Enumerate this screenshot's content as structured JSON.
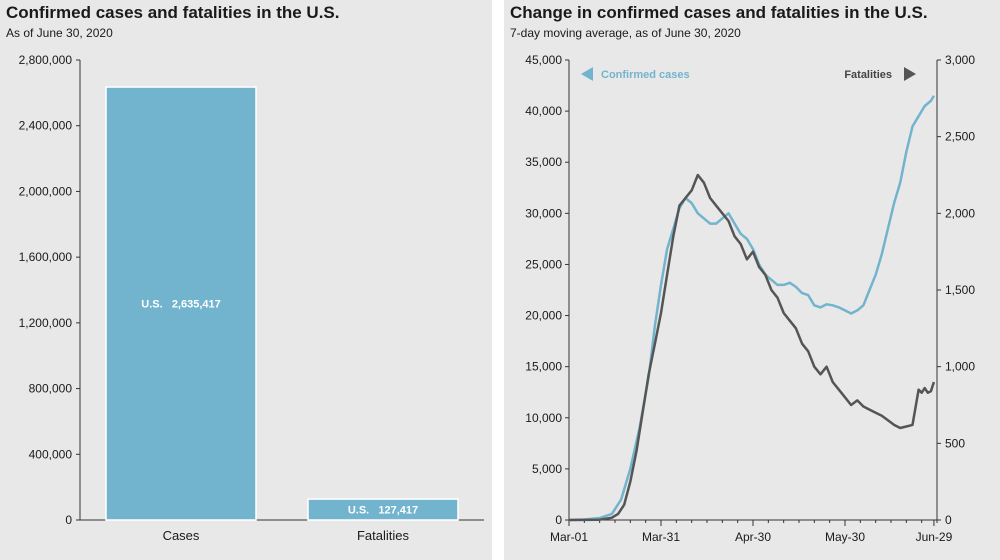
{
  "colors": {
    "bar": "#72b4cd",
    "cases_line": "#72b4cd",
    "fatalities_line": "#555555",
    "axis": "#333333",
    "text": "#1a1a1a",
    "panel_bg": "#e8e8e8"
  },
  "chart_data": [
    {
      "type": "bar",
      "title": "Confirmed cases and fatalities in the U.S.",
      "subtitle": "As of June 30, 2020",
      "categories": [
        "Cases",
        "Fatalities"
      ],
      "values": [
        2635417,
        127417
      ],
      "data_labels": [
        {
          "prefix": "U.S.",
          "value": "2,635,417"
        },
        {
          "prefix": "U.S.",
          "value": "127,417"
        }
      ],
      "ylim": [
        0,
        2800000
      ],
      "yticks": [
        0,
        400000,
        800000,
        1200000,
        1600000,
        2000000,
        2400000,
        2800000
      ],
      "ytick_labels": [
        "0",
        "400,000",
        "800,000",
        "1,200,000",
        "1,600,000",
        "2,000,000",
        "2,400,000",
        "2,800,000"
      ],
      "xlabel": "",
      "ylabel": ""
    },
    {
      "type": "line",
      "title": "Change in confirmed cases and fatalities in the U.S.",
      "subtitle": "7-day moving average, as of June 30, 2020",
      "x_range": [
        0,
        120
      ],
      "xticks": [
        0,
        30,
        60,
        90,
        119
      ],
      "xtick_labels": [
        "Mar-01",
        "Mar-31",
        "Apr-30",
        "May-30",
        "Jun-29"
      ],
      "y_left": {
        "lim": [
          0,
          45000
        ],
        "ticks": [
          0,
          5000,
          10000,
          15000,
          20000,
          25000,
          30000,
          35000,
          40000,
          45000
        ],
        "tick_labels": [
          "0",
          "5,000",
          "10,000",
          "15,000",
          "20,000",
          "25,000",
          "30,000",
          "35,000",
          "40,000",
          "45,000"
        ]
      },
      "y_right": {
        "lim": [
          0,
          3000
        ],
        "ticks": [
          0,
          500,
          1000,
          1500,
          2000,
          2500,
          3000
        ],
        "tick_labels": [
          "0",
          "500",
          "1,000",
          "1,500",
          "2,000",
          "2,500",
          "3,000"
        ]
      },
      "legend": [
        {
          "name": "Confirmed cases",
          "axis": "left",
          "arrow": "left",
          "placement": "top-left"
        },
        {
          "name": "Fatalities",
          "axis": "right",
          "arrow": "right",
          "placement": "top-right"
        }
      ],
      "series": [
        {
          "name": "Confirmed cases",
          "axis": "left",
          "x": [
            0,
            5,
            10,
            14,
            17,
            20,
            23,
            26,
            28,
            30,
            32,
            34,
            36,
            38,
            40,
            42,
            44,
            46,
            48,
            50,
            52,
            54,
            56,
            58,
            60,
            62,
            64,
            66,
            68,
            70,
            72,
            74,
            76,
            78,
            80,
            82,
            84,
            86,
            88,
            90,
            92,
            94,
            96,
            98,
            100,
            102,
            104,
            106,
            108,
            110,
            112,
            114,
            116,
            118,
            119
          ],
          "y": [
            0,
            50,
            200,
            600,
            2000,
            5000,
            9000,
            14000,
            19000,
            23000,
            26500,
            28500,
            30500,
            31500,
            31000,
            30000,
            29500,
            29000,
            29000,
            29500,
            30000,
            29000,
            28000,
            27500,
            26500,
            25000,
            24000,
            23500,
            23000,
            23000,
            23200,
            22800,
            22200,
            22000,
            21000,
            20800,
            21100,
            21000,
            20800,
            20500,
            20200,
            20500,
            21000,
            22500,
            24000,
            26000,
            28500,
            31000,
            33000,
            36000,
            38500,
            39500,
            40500,
            41000,
            41500
          ]
        },
        {
          "name": "Fatalities",
          "axis": "right",
          "x": [
            0,
            10,
            14,
            16,
            18,
            20,
            22,
            24,
            26,
            28,
            30,
            32,
            34,
            36,
            38,
            40,
            42,
            44,
            46,
            48,
            50,
            52,
            54,
            56,
            58,
            60,
            62,
            64,
            66,
            68,
            70,
            72,
            74,
            76,
            78,
            80,
            82,
            84,
            86,
            88,
            90,
            92,
            94,
            96,
            98,
            100,
            102,
            104,
            106,
            108,
            110,
            112,
            114,
            115,
            116,
            117,
            118,
            119
          ],
          "y": [
            0,
            2,
            15,
            40,
            100,
            250,
            450,
            700,
            950,
            1150,
            1350,
            1600,
            1850,
            2050,
            2100,
            2150,
            2250,
            2200,
            2100,
            2050,
            2000,
            1950,
            1850,
            1800,
            1700,
            1750,
            1650,
            1600,
            1500,
            1450,
            1350,
            1300,
            1250,
            1150,
            1100,
            1000,
            950,
            1000,
            900,
            850,
            800,
            750,
            780,
            740,
            720,
            700,
            680,
            650,
            620,
            600,
            610,
            620,
            850,
            830,
            860,
            830,
            840,
            900
          ]
        }
      ]
    }
  ]
}
